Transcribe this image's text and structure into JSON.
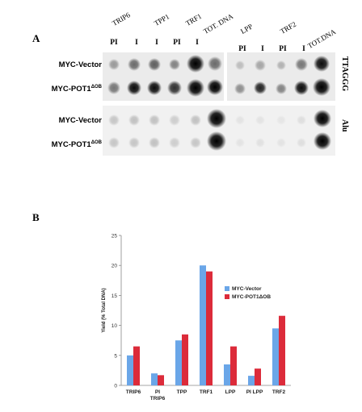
{
  "panelA": {
    "letter": "A",
    "groups": [
      {
        "label": "TRIP6",
        "subs": [
          "PI",
          "I"
        ]
      },
      {
        "label": "TPP1",
        "subs": [
          "I",
          "PI"
        ]
      },
      {
        "label": "TRF1",
        "subs": [
          "I"
        ]
      },
      {
        "label": "TOT. DNA",
        "subs": []
      },
      {
        "label": "LPP",
        "subs": [
          "PI",
          "I"
        ]
      },
      {
        "label": "TRF2",
        "subs": [
          "PI",
          "I"
        ]
      },
      {
        "label": "TOT.DNA",
        "subs": []
      }
    ],
    "rows": [
      {
        "label": "MYC-Vector",
        "sup": ""
      },
      {
        "label": "MYC-POT1",
        "sup": "ΔOB"
      },
      {
        "label": "MYC-Vector",
        "sup": ""
      },
      {
        "label": "MYC-POT1",
        "sup": "ΔOB"
      }
    ],
    "probes": [
      "TTAGGG",
      "Alu"
    ]
  },
  "panelB": {
    "letter": "B"
  },
  "chart_data": {
    "type": "bar",
    "categories": [
      "TRIP6",
      "PI TRIP6",
      "TPP",
      "TRF1",
      "LPP",
      "PI LPP",
      "TRF2"
    ],
    "category_lines": [
      [
        "TRIP6"
      ],
      [
        "PI",
        "TRIP6"
      ],
      [
        "TPP"
      ],
      [
        "TRF1"
      ],
      [
        "LPP"
      ],
      [
        "PI LPP"
      ],
      [
        "TRF2"
      ]
    ],
    "series": [
      {
        "name": "MYC-Vector",
        "color": "#6aa6e8",
        "values": [
          5,
          2,
          7.5,
          20,
          3.5,
          1.6,
          9.5
        ]
      },
      {
        "name": "MYC-POT1ΔOB",
        "color": "#dc2b3a",
        "values": [
          6.5,
          1.7,
          8.5,
          19,
          6.5,
          2.8,
          11.6
        ]
      }
    ],
    "ylabel": "Yield (% Total DNA)",
    "ylim": [
      0,
      25
    ],
    "yticks": [
      0,
      5,
      10,
      15,
      20,
      25
    ],
    "legend_position": "right",
    "grid": false
  }
}
